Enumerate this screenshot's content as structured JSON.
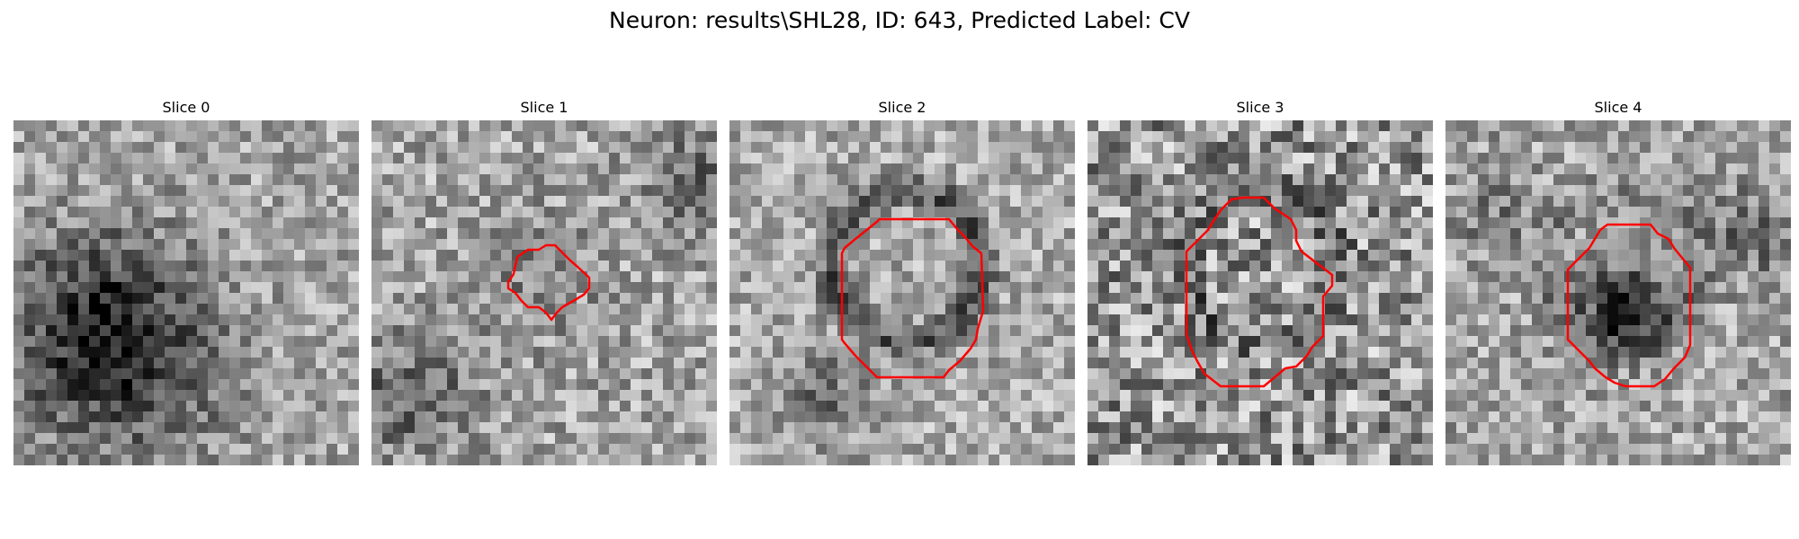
{
  "figure": {
    "title": "Neuron: results\\SHL28, ID: 643, Predicted Label: CV"
  },
  "panels": [
    {
      "title": "Slice 0"
    },
    {
      "title": "Slice 1"
    },
    {
      "title": "Slice 2"
    },
    {
      "title": "Slice 3"
    },
    {
      "title": "Slice 4"
    }
  ],
  "colors": {
    "contour": "#ff0000",
    "colormap": "gray",
    "background": "#ffffff"
  }
}
